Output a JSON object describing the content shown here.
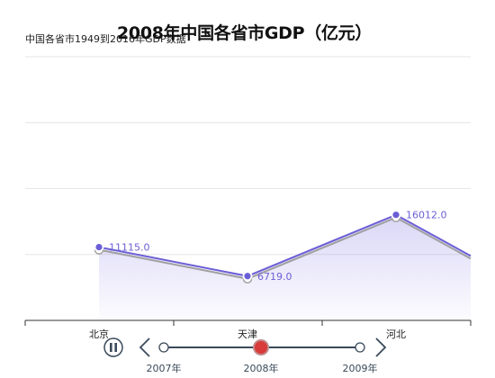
{
  "chart_data": {
    "type": "line",
    "title": "2008年中国各省市GDP（亿元）",
    "subtitle": "中国各省市1949到2016年GDP数据",
    "categories": [
      "北京",
      "天津",
      "河北"
    ],
    "series": [
      {
        "values": [
          11115.0,
          6719.0,
          16012.0
        ],
        "color": "#6b5fd6"
      },
      {
        "values": [
          11115.0,
          6719.0,
          16012.0
        ],
        "color": "#a0a0a0"
      }
    ],
    "data_labels": [
      "11115.0",
      "6719.0",
      "16012.0"
    ],
    "ylim": [
      0,
      40000
    ],
    "grid": true
  },
  "timeline": {
    "years": [
      "2007年",
      "2008年",
      "2009年"
    ],
    "current": "2008年",
    "controls": [
      "pause-icon",
      "chevron-left-icon",
      "chevron-right-icon"
    ],
    "accent": "#d93a3a"
  }
}
